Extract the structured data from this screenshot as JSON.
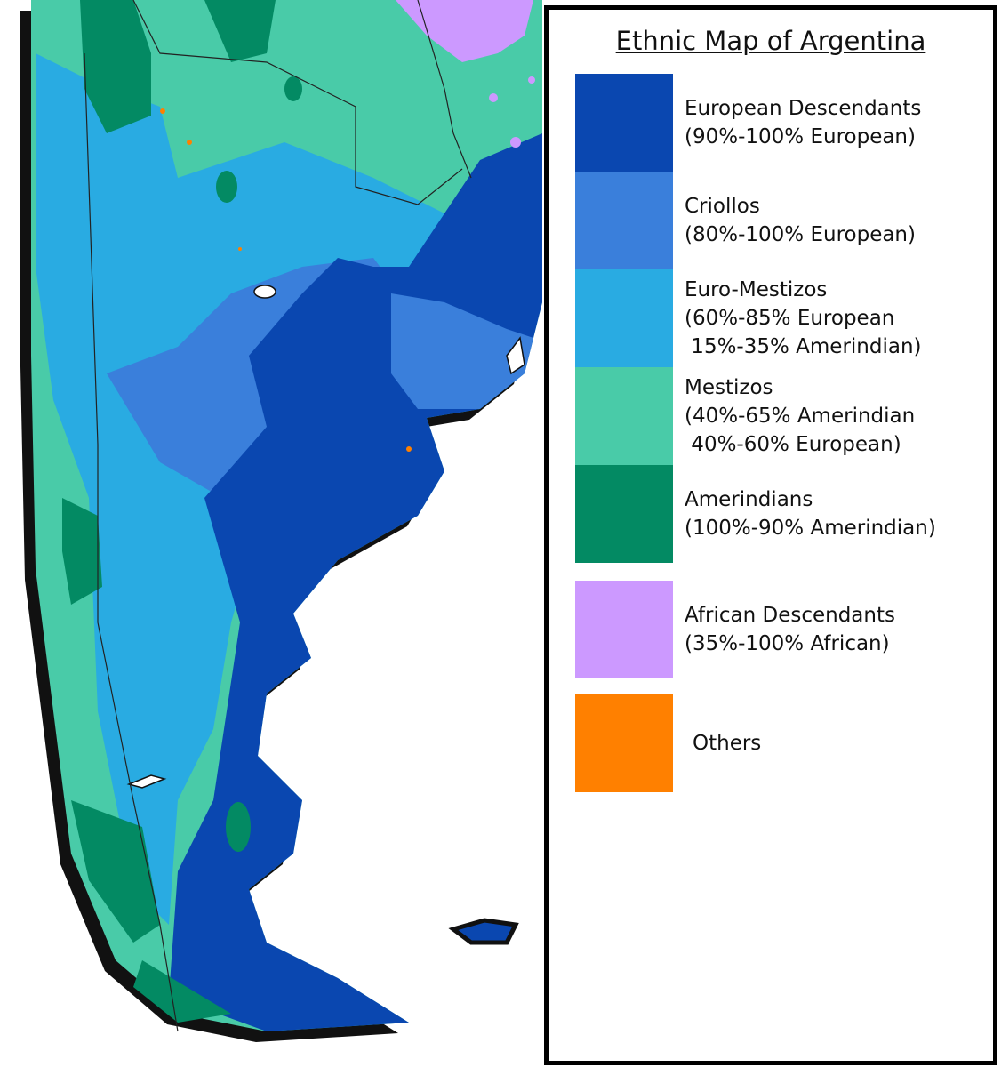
{
  "title": "Ethnic Map of Argentina",
  "legend": {
    "items": [
      {
        "color": "#0a47b0",
        "lines": [
          "European Descendants",
          "(90%-100% European)"
        ]
      },
      {
        "color": "#3a7fdb",
        "lines": [
          "Criollos",
          "(80%-100% European)"
        ]
      },
      {
        "color": "#29abe2",
        "lines": [
          "Euro-Mestizos",
          "(60%-85% European",
          " 15%-35% Amerindian)"
        ]
      },
      {
        "color": "#49cba8",
        "lines": [
          "Mestizos",
          "(40%-65% Amerindian",
          " 40%-60% European)"
        ]
      },
      {
        "color": "#038a63",
        "lines": [
          "Amerindians",
          "(100%-90% Amerindian)"
        ]
      },
      {
        "color": "#cc99ff",
        "lines": [
          "African Descendants",
          "(35%-100% African)"
        ]
      },
      {
        "color": "#ff8000",
        "lines": [
          "Others"
        ]
      }
    ]
  }
}
